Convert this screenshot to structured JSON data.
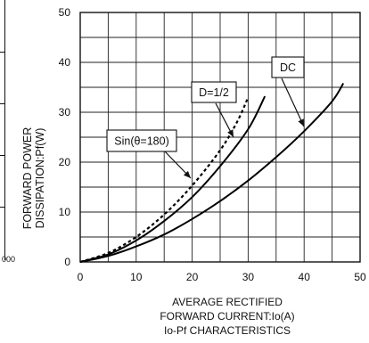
{
  "chart_data": {
    "type": "line",
    "ylabel_lines": [
      "FORWARD POWER",
      "DISSIPATION:Pf(W)"
    ],
    "xlabel_lines": [
      "AVERAGE RECTIFIED",
      "FORWARD CURRENT:Io(A)",
      "Io-Pf CHARACTERISTICS"
    ],
    "xlim": [
      0,
      50
    ],
    "ylim": [
      0,
      50
    ],
    "x_ticks": [
      "0",
      "10",
      "20",
      "30",
      "40",
      "50"
    ],
    "y_ticks": [
      "0",
      "10",
      "20",
      "30",
      "40",
      "50"
    ],
    "grid": true,
    "series": [
      {
        "name": "DC",
        "style": "solid",
        "points": [
          [
            0,
            0
          ],
          [
            5,
            1.2
          ],
          [
            10,
            3.1
          ],
          [
            15,
            5.5
          ],
          [
            20,
            8.6
          ],
          [
            25,
            12.2
          ],
          [
            30,
            16.3
          ],
          [
            35,
            21.0
          ],
          [
            40,
            26.2
          ],
          [
            45,
            32.2
          ],
          [
            47,
            35.8
          ]
        ]
      },
      {
        "name": "Sin(θ=180)",
        "style": "solid",
        "points": [
          [
            0,
            0
          ],
          [
            5,
            1.5
          ],
          [
            10,
            4.3
          ],
          [
            15,
            8.2
          ],
          [
            20,
            13.0
          ],
          [
            25,
            19.2
          ],
          [
            30,
            26.6
          ],
          [
            33,
            33.2
          ]
        ]
      },
      {
        "name": "D=1/2",
        "style": "dashed",
        "points": [
          [
            0,
            0
          ],
          [
            5,
            1.8
          ],
          [
            10,
            5.0
          ],
          [
            15,
            9.5
          ],
          [
            20,
            15.3
          ],
          [
            25,
            22.4
          ],
          [
            28,
            28.0
          ],
          [
            30,
            33.0
          ]
        ]
      }
    ],
    "edge_tick": "000"
  }
}
